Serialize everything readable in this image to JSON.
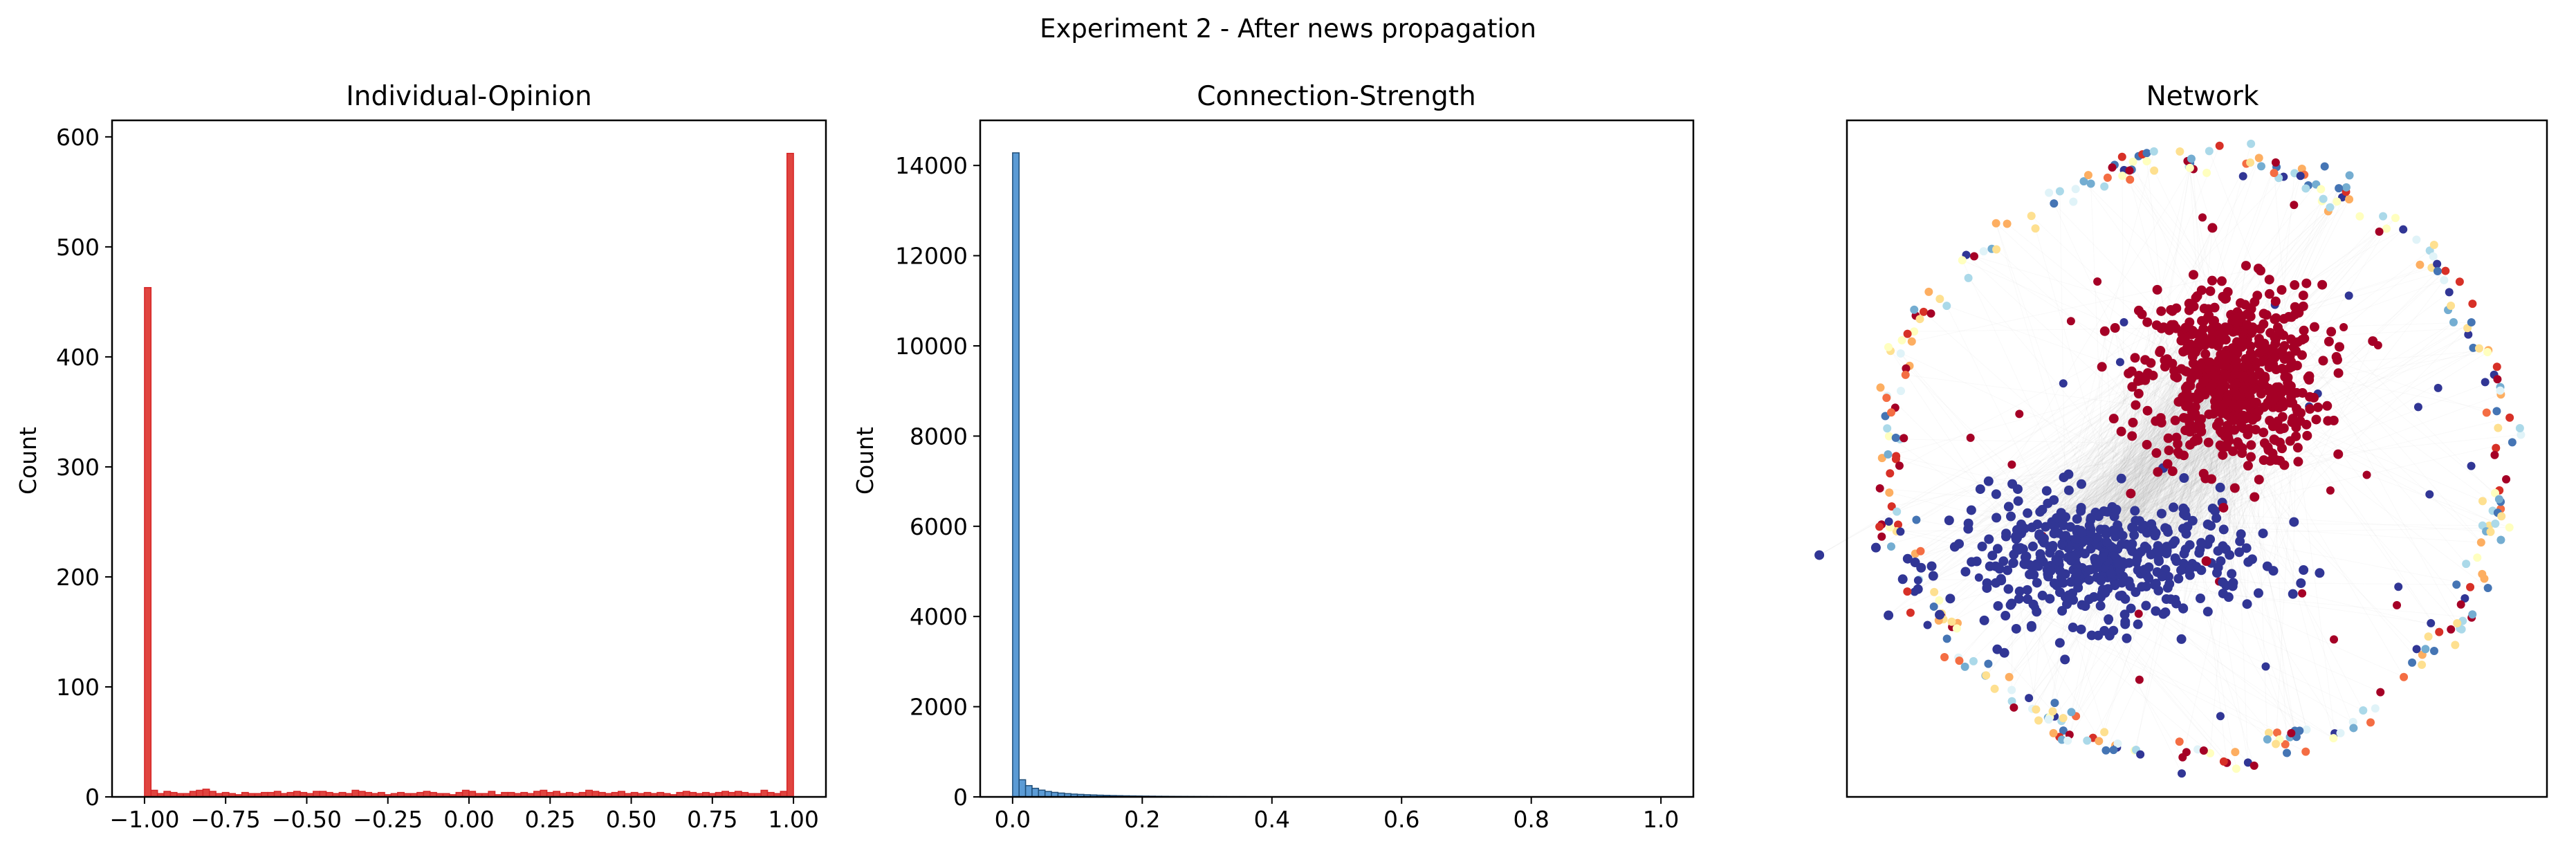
{
  "figure": {
    "suptitle": "Experiment 2 - After news propagation",
    "background": "#ffffff"
  },
  "chart_data": [
    {
      "type": "bar",
      "subtype": "histogram",
      "title": "Individual-Opinion",
      "xlabel": "",
      "ylabel": "Count",
      "xlim": [
        -1.1,
        1.1
      ],
      "ylim": [
        0,
        615
      ],
      "xticks": [
        -1.0,
        -0.75,
        -0.5,
        -0.25,
        0.0,
        0.25,
        0.5,
        0.75,
        1.0
      ],
      "xtick_labels": [
        "−1.00",
        "−0.75",
        "−0.50",
        "−0.25",
        "0.00",
        "0.25",
        "0.50",
        "0.75",
        "1.00"
      ],
      "yticks": [
        0,
        100,
        200,
        300,
        400,
        500,
        600
      ],
      "ytick_labels": [
        "0",
        "100",
        "200",
        "300",
        "400",
        "500",
        "600"
      ],
      "bin_start": -1.0,
      "bin_width": 0.02,
      "values": [
        463,
        6,
        3,
        5,
        4,
        3,
        3,
        5,
        6,
        7,
        5,
        3,
        4,
        3,
        2,
        4,
        3,
        3,
        4,
        4,
        5,
        3,
        4,
        5,
        4,
        3,
        5,
        5,
        4,
        3,
        4,
        3,
        6,
        5,
        4,
        3,
        4,
        2,
        3,
        4,
        3,
        3,
        4,
        5,
        4,
        3,
        3,
        2,
        4,
        6,
        5,
        3,
        3,
        5,
        2,
        4,
        4,
        3,
        4,
        3,
        5,
        6,
        4,
        5,
        3,
        4,
        3,
        4,
        6,
        5,
        4,
        3,
        4,
        5,
        3,
        4,
        3,
        4,
        3,
        4,
        3,
        2,
        4,
        5,
        4,
        3,
        4,
        3,
        4,
        5,
        4,
        5,
        4,
        3,
        3,
        6,
        4,
        3,
        5,
        585
      ],
      "color": "#d62728",
      "fill": "#e0443f"
    },
    {
      "type": "bar",
      "subtype": "histogram",
      "title": "Connection-Strength",
      "xlabel": "",
      "ylabel": "Count",
      "xlim": [
        -0.05,
        1.05
      ],
      "ylim": [
        0,
        15000
      ],
      "xticks": [
        0.0,
        0.2,
        0.4,
        0.6,
        0.8,
        1.0
      ],
      "xtick_labels": [
        "0.0",
        "0.2",
        "0.4",
        "0.6",
        "0.8",
        "1.0"
      ],
      "yticks": [
        0,
        2000,
        4000,
        6000,
        8000,
        10000,
        12000,
        14000
      ],
      "ytick_labels": [
        "0",
        "2000",
        "4000",
        "6000",
        "8000",
        "10000",
        "12000",
        "14000"
      ],
      "bin_start": 0.0,
      "bin_width": 0.01,
      "values": [
        14280,
        380,
        250,
        190,
        150,
        120,
        100,
        85,
        72,
        62,
        55,
        48,
        43,
        38,
        34,
        30,
        27,
        24,
        22,
        20,
        18,
        16,
        14,
        13,
        12,
        11,
        10,
        9,
        8,
        8,
        7,
        6,
        6,
        5,
        5,
        5,
        4,
        4,
        4,
        3,
        3,
        3,
        3,
        2,
        2,
        2,
        2,
        2,
        2,
        1
      ],
      "color": "#1f4e79",
      "fill": "#5b9bd5"
    },
    {
      "type": "scatter",
      "subtype": "network",
      "title": "Network",
      "axes_visible": false,
      "clusters": [
        {
          "color": "#a50026",
          "cx": 0.55,
          "cy": 0.62,
          "spread": 0.075,
          "count": 600
        },
        {
          "color": "#313695",
          "cx": 0.36,
          "cy": 0.35,
          "spread": 0.085,
          "count": 460
        }
      ],
      "ring": {
        "cx": 0.5,
        "cy": 0.5,
        "r": 0.44,
        "count": 320
      },
      "palette": [
        "#a50026",
        "#d73027",
        "#f46d43",
        "#fdae61",
        "#fee090",
        "#ffffbf",
        "#e0f3f8",
        "#abd9e9",
        "#74add1",
        "#4575b4",
        "#313695"
      ],
      "edge_color": "#9e9e9e"
    }
  ]
}
